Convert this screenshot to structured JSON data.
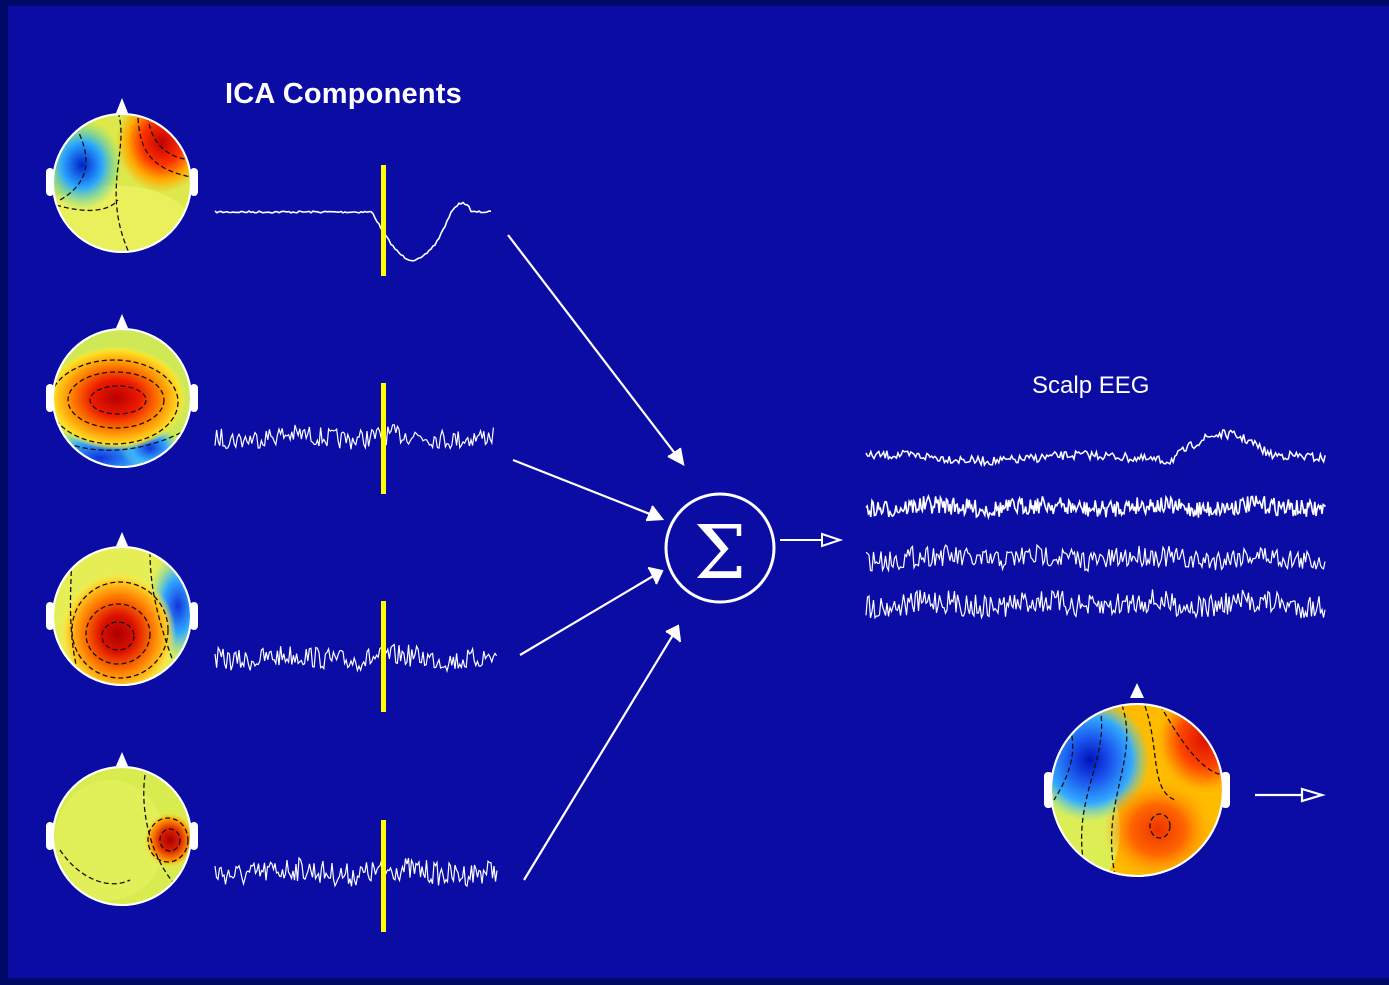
{
  "titles": {
    "components": "ICA Components",
    "scalp": "Scalp EEG"
  },
  "sum_symbol": "Σ",
  "components": [
    {
      "name": "component-1",
      "signal": "slow-dip",
      "hot_region": "right-frontal",
      "cold_region": "left-frontal"
    },
    {
      "name": "component-2",
      "signal": "noise",
      "hot_region": "central",
      "cold_region": "posterior"
    },
    {
      "name": "component-3",
      "signal": "noise",
      "hot_region": "left-central",
      "cold_region": "right-temporal"
    },
    {
      "name": "component-4",
      "signal": "noise",
      "hot_region": "right-temporal",
      "cold_region": "none"
    }
  ],
  "scalp_traces": 4,
  "colors": {
    "background": "#0a0ca3",
    "border": "#000a66",
    "trace": "#ffffff",
    "marker": "#ffff00",
    "hot": "#cc0000",
    "warm": "#ffbb00",
    "neutral": "#ccee44",
    "cold": "#1a33cc"
  }
}
